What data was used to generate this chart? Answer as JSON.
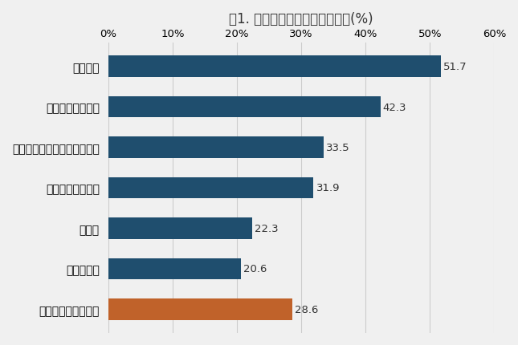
{
  "title": "図1. 災害への備え・準備実施率(%)",
  "categories": [
    "懐中電灯",
    "数日分の水・食糧",
    "スマホ用モバイルバッテリー",
    "非常用持ち出し袋",
    "医薬品",
    "家具の固定",
    "何も準備していない"
  ],
  "values": [
    51.7,
    42.3,
    33.5,
    31.9,
    22.3,
    20.6,
    28.6
  ],
  "bar_colors": [
    "#1f4e6e",
    "#1f4e6e",
    "#1f4e6e",
    "#1f4e6e",
    "#1f4e6e",
    "#1f4e6e",
    "#c0622a"
  ],
  "xlim": [
    0,
    60
  ],
  "xticks": [
    0,
    10,
    20,
    30,
    40,
    50,
    60
  ],
  "xticklabels": [
    "0%",
    "10%",
    "20%",
    "30%",
    "40%",
    "50%",
    "60%"
  ],
  "title_fontsize": 12,
  "label_fontsize": 10,
  "value_fontsize": 9.5,
  "tick_fontsize": 9.5,
  "background_color": "#f0f0f0",
  "bar_height": 0.52
}
